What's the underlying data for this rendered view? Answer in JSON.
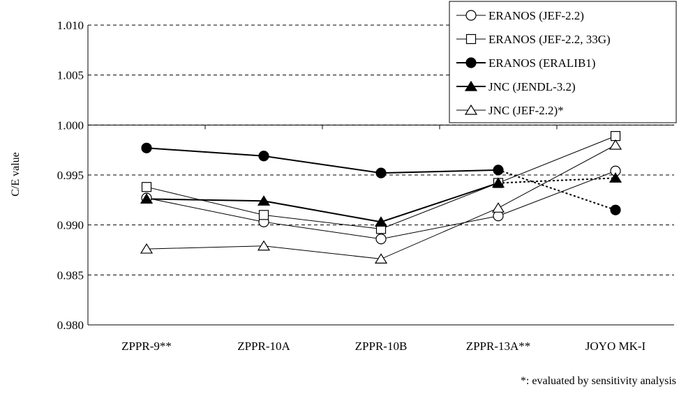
{
  "chart_data": {
    "type": "line",
    "title": "",
    "ylabel": "C/E value",
    "xlabel": "",
    "categories": [
      "ZPPR-9**",
      "ZPPR-10A",
      "ZPPR-10B",
      "ZPPR-13A**",
      "JOYO MK-I"
    ],
    "ylim": [
      0.98,
      1.01
    ],
    "yticks": [
      "0.980",
      "0.985",
      "0.990",
      "0.995",
      "1.000",
      "1.005",
      "1.010"
    ],
    "grid": "horizontal dashed",
    "legend_position": "top-right",
    "footnote": "*: evaluated by sensitivity analysis",
    "series": [
      {
        "name": "ERANOS (JEF-2.2)",
        "marker": "circle-open",
        "values": [
          0.9927,
          0.9903,
          0.9886,
          0.9909,
          0.9954
        ],
        "joyo_link": "solid"
      },
      {
        "name": "ERANOS (JEF-2.2, 33G)",
        "marker": "square-open",
        "values": [
          0.9938,
          0.991,
          0.9896,
          0.9942,
          0.9989
        ],
        "joyo_link": "solid"
      },
      {
        "name": "ERANOS (ERALIB1)",
        "marker": "circle-filled",
        "values": [
          0.9977,
          0.9969,
          0.9952,
          0.9955,
          0.9915
        ],
        "joyo_link": "dotted"
      },
      {
        "name": "JNC (JENDL-3.2)",
        "marker": "triangle-filled",
        "values": [
          0.9926,
          0.9924,
          0.9903,
          0.9942,
          0.9947
        ],
        "joyo_link": "dotted"
      },
      {
        "name": "JNC (JEF-2.2)*",
        "marker": "triangle-open",
        "values": [
          0.9876,
          0.9879,
          0.9866,
          0.9917,
          0.998
        ],
        "joyo_link": "solid"
      }
    ]
  }
}
